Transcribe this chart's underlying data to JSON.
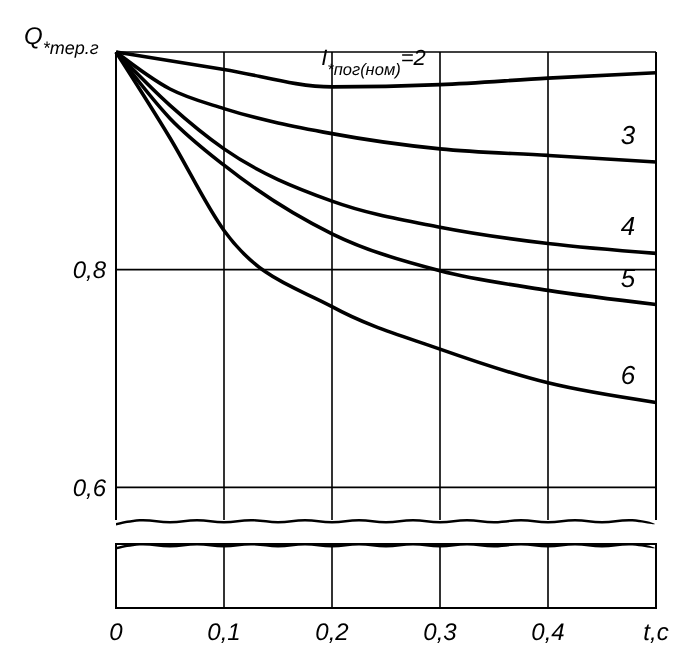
{
  "chart_data": {
    "type": "line",
    "xlabel": "t,c",
    "ylabel": "Q$_{*тер.г}$",
    "x": [
      0,
      0.05,
      0.1,
      0.2,
      0.3,
      0.4,
      0.5
    ],
    "series": [
      {
        "name": "I$_{*пог(ном)}$=2",
        "color": "#000000",
        "values": [
          1.0,
          0.992,
          0.984,
          0.968,
          0.97,
          0.976,
          0.981
        ]
      },
      {
        "name": "3",
        "color": "#000000",
        "values": [
          1.0,
          0.966,
          0.948,
          0.925,
          0.911,
          0.905,
          0.899
        ]
      },
      {
        "name": "4",
        "color": "#000000",
        "values": [
          1.0,
          0.951,
          0.911,
          0.863,
          0.839,
          0.824,
          0.815
        ]
      },
      {
        "name": "5",
        "color": "#000000",
        "values": [
          1.0,
          0.939,
          0.896,
          0.833,
          0.799,
          0.781,
          0.768
        ]
      },
      {
        "name": "6",
        "color": "#000000",
        "values": [
          1.0,
          0.921,
          0.836,
          0.766,
          0.727,
          0.696,
          0.678
        ]
      }
    ],
    "xlim": [
      0,
      0.5
    ],
    "xticks": [
      {
        "value": 0,
        "label": "0"
      },
      {
        "value": 0.1,
        "label": "0,1"
      },
      {
        "value": 0.2,
        "label": "0,2"
      },
      {
        "value": 0.3,
        "label": "0,3"
      },
      {
        "value": 0.4,
        "label": "0,4"
      }
    ],
    "ylim": [
      0.57,
      1.0
    ],
    "yticks": [
      {
        "value": 0.6,
        "label": "0,6"
      },
      {
        "value": 0.8,
        "label": "0,8"
      },
      {
        "value": 1.0,
        "label": null
      }
    ],
    "grid": true,
    "marker": "none",
    "line_style": "solid"
  }
}
